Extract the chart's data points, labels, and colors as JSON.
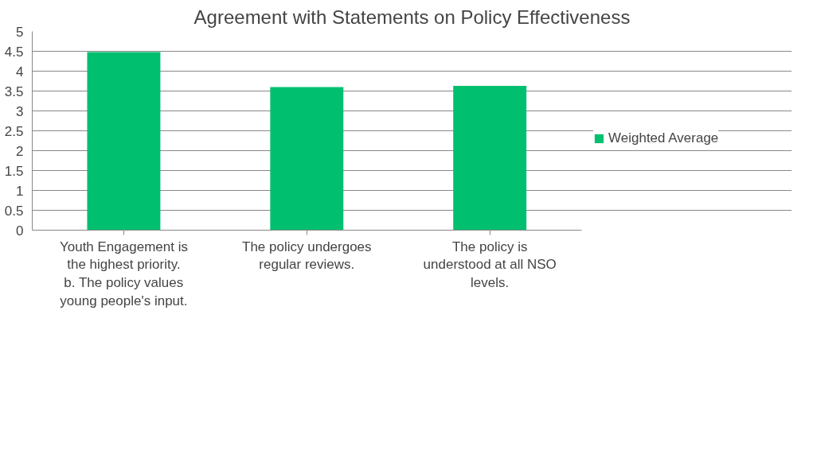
{
  "chart_data": {
    "type": "bar",
    "title": "Agreement with Statements on Policy Effectiveness",
    "categories": [
      "Youth Engagement is the highest priority. b. The policy values young people's input.",
      "The policy undergoes regular reviews.",
      "The policy is understood at all NSO levels."
    ],
    "series": [
      {
        "name": "Weighted Average",
        "color": "#00bf6f",
        "values": [
          4.48,
          3.6,
          3.63
        ]
      }
    ],
    "ylim": [
      0,
      5
    ],
    "yticks": [
      0,
      0.5,
      1,
      1.5,
      2,
      2.5,
      3,
      3.5,
      4,
      4.5,
      5
    ],
    "grid": "y",
    "legend": "right"
  }
}
